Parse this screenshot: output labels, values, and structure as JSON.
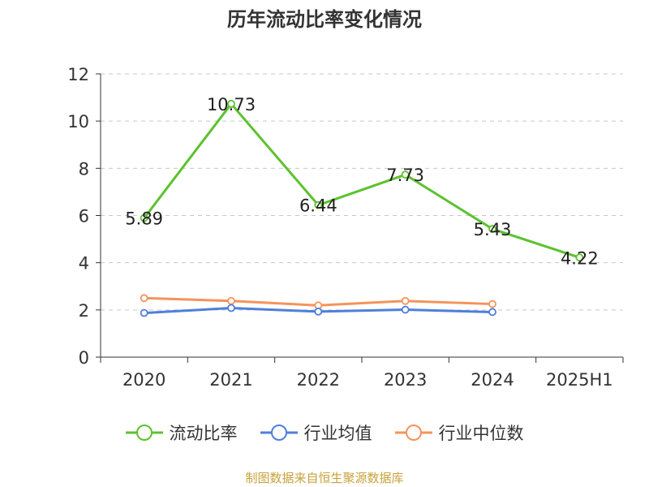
{
  "chart_data": {
    "type": "line",
    "title": "历年流动比率变化情况",
    "categories": [
      "2020",
      "2021",
      "2022",
      "2023",
      "2024",
      "2025H1"
    ],
    "ylim": [
      0,
      12
    ],
    "yticks": [
      0,
      2,
      4,
      6,
      8,
      10,
      12
    ],
    "grid": true,
    "legend_position": "bottom",
    "series": [
      {
        "name": "流动比率",
        "color": "#5cc22e",
        "values": [
          5.89,
          10.73,
          6.44,
          7.73,
          5.43,
          4.22
        ],
        "labels": [
          "5.89",
          "10.73",
          "6.44",
          "7.73",
          "5.43",
          "4.22"
        ],
        "show_labels": true
      },
      {
        "name": "行业均值",
        "color": "#4f7fdb",
        "values": [
          1.87,
          2.08,
          1.93,
          2.01,
          1.91,
          null
        ],
        "show_labels": false
      },
      {
        "name": "行业中位数",
        "color": "#f5935a",
        "values": [
          2.5,
          2.38,
          2.19,
          2.38,
          2.25,
          null
        ],
        "show_labels": false
      }
    ]
  },
  "footer": "制图数据来自恒生聚源数据库"
}
